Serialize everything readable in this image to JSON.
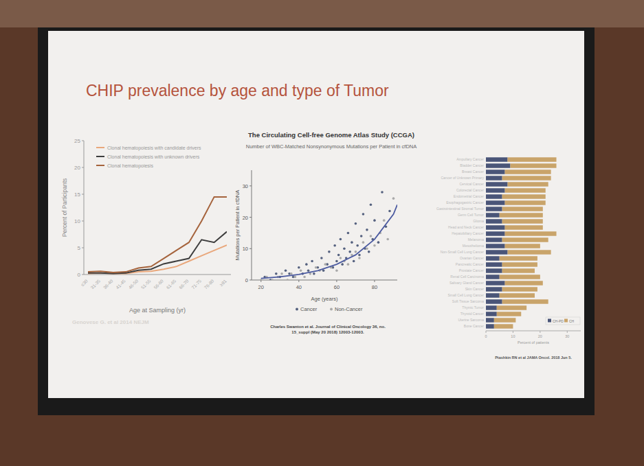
{
  "slide": {
    "title": "CHIP prevalence by age and type of Tumor"
  },
  "chart_data": [
    {
      "type": "line",
      "xlabel": "Age at Sampling (yr)",
      "ylabel": "Percent of Participants",
      "categories": [
        "≤30",
        "31-35",
        "36-40",
        "41-45",
        "46-50",
        "51-55",
        "56-60",
        "61-65",
        "66-70",
        "71-75",
        "76-80",
        "≥81"
      ],
      "series": [
        {
          "name": "Clonal hematopoiesis with candidate drivers",
          "color": "#e9a77b",
          "values": [
            0.2,
            0.3,
            0.2,
            0.2,
            0.5,
            0.6,
            1.0,
            1.5,
            2.5,
            3.5,
            4.5,
            5.5
          ]
        },
        {
          "name": "Clonal hematopoiesis with unknown drivers",
          "color": "#3d3d3d",
          "values": [
            0.3,
            0.3,
            0.2,
            0.3,
            0.8,
            1.0,
            2.0,
            2.5,
            3.0,
            6.5,
            6.0,
            8.0
          ]
        },
        {
          "name": "Clonal hematopoiesis",
          "color": "#a5633c",
          "values": [
            0.5,
            0.6,
            0.4,
            0.5,
            1.2,
            1.5,
            3.0,
            4.5,
            6.0,
            10.0,
            14.5,
            14.5
          ]
        }
      ],
      "ylim": [
        0,
        25
      ],
      "yticks": [
        0,
        5,
        10,
        15,
        20,
        25
      ],
      "legend": "upper left",
      "source": [
        "Genovese G. et al 2014 NEJM"
      ]
    },
    {
      "type": "scatter",
      "title": "The Circulating Cell-free Genome Atlas Study (CCGA)",
      "subtitle": "Number of WBC-Matched Nonsynonymous Mutations per Patient in cfDNA",
      "xlabel": "Age (years)",
      "ylabel": "Mutations per Patient in cfDNA",
      "series": [
        {
          "name": "Cancer",
          "color": "#55617f",
          "marker": "circle",
          "x": [
            22,
            25,
            28,
            30,
            33,
            35,
            37,
            40,
            42,
            44,
            45,
            47,
            48,
            50,
            52,
            53,
            55,
            56,
            58,
            59,
            60,
            61,
            62,
            63,
            64,
            65,
            66,
            67,
            68,
            69,
            70,
            71,
            72,
            73,
            74,
            75,
            76,
            77,
            78,
            79,
            80,
            82,
            84,
            86,
            88
          ],
          "values": [
            1,
            0,
            2,
            1,
            3,
            2,
            1,
            4,
            2,
            5,
            3,
            6,
            2,
            4,
            7,
            3,
            5,
            9,
            4,
            11,
            6,
            8,
            13,
            5,
            10,
            7,
            15,
            9,
            12,
            6,
            18,
            11,
            8,
            14,
            21,
            10,
            16,
            9,
            24,
            13,
            19,
            12,
            28,
            17,
            22
          ]
        },
        {
          "name": "Non-Cancer",
          "color": "#a9a9a9",
          "marker": "circle",
          "x": [
            20,
            23,
            26,
            29,
            31,
            34,
            36,
            38,
            41,
            43,
            46,
            49,
            51,
            54,
            57,
            60,
            62,
            64,
            66,
            68,
            70,
            72,
            74,
            76,
            78,
            80,
            83,
            85,
            87,
            90
          ],
          "values": [
            0,
            1,
            0,
            1,
            2,
            0,
            2,
            1,
            3,
            1,
            2,
            4,
            3,
            5,
            4,
            3,
            7,
            6,
            5,
            8,
            9,
            7,
            12,
            10,
            14,
            11,
            15,
            19,
            13,
            26
          ]
        },
        {
          "type": "line",
          "color": "#4b5aa0",
          "line_style": "solid",
          "x": [
            20,
            30,
            40,
            50,
            60,
            70,
            80,
            90,
            92
          ],
          "values": [
            0.5,
            1,
            1.8,
            3,
            5,
            8,
            13,
            21,
            24
          ]
        }
      ],
      "xlim": [
        15,
        92
      ],
      "xticks": [
        20,
        40,
        60,
        80
      ],
      "ylim": [
        0,
        35
      ],
      "yticks": [
        0,
        10,
        20,
        30
      ],
      "legend": "bottom",
      "source": [
        "Charles Swanton et al. Journal of Clinical Oncology 36, no.",
        "15_suppl (May 20 2018) 12003-12003."
      ]
    },
    {
      "type": "bar",
      "orientation": "horizontal",
      "stacked": true,
      "xlabel": "Percent of patients",
      "categories": [
        "Ampullary Cancer",
        "Bladder Cancer",
        "Breast Cancer",
        "Cancer of Unknown Primary",
        "Cervical Cancer",
        "Colorectal Cancer",
        "Endometrial Cancer",
        "Esophagogastric Cancer",
        "Gastrointestinal Stromal Tumor",
        "Germ Cell Tumor",
        "Glioma",
        "Head and Neck Cancer",
        "Hepatobiliary Cancer",
        "Melanoma",
        "Mesothelioma",
        "Non-Small Cell Lung Cancer",
        "Ovarian Cancer",
        "Pancreatic Cancer",
        "Prostate Cancer",
        "Renal Cell Carcinoma",
        "Salivary Gland Cancer",
        "Skin Cancer",
        "Small Cell Lung Cancer",
        "Soft Tissue Sarcoma",
        "Thymic Tumor",
        "Thyroid Cancer",
        "Uterine Sarcoma",
        "Bone Cancer"
      ],
      "series": [
        {
          "name": "CH-PD",
          "color": "#4a5578",
          "values": [
            8,
            9,
            7,
            6,
            8,
            7,
            6,
            7,
            6,
            5,
            6,
            7,
            7,
            6,
            7,
            8,
            5,
            6,
            6,
            5,
            7,
            6,
            5,
            6,
            4,
            4,
            3,
            3
          ]
        },
        {
          "name": "CH",
          "color": "#c9a46a",
          "values": [
            18,
            17,
            17,
            18,
            15,
            15,
            16,
            15,
            15,
            16,
            15,
            14,
            19,
            17,
            13,
            16,
            14,
            13,
            12,
            15,
            14,
            13,
            13,
            17,
            11,
            9,
            8,
            7
          ]
        }
      ],
      "xlim": [
        0,
        35
      ],
      "xticks": [
        0,
        10,
        20,
        30
      ],
      "legend": "bottom right",
      "source": [
        "Ptashkin RN et al JAMA Oncol. 2018 Jun 5."
      ]
    }
  ]
}
